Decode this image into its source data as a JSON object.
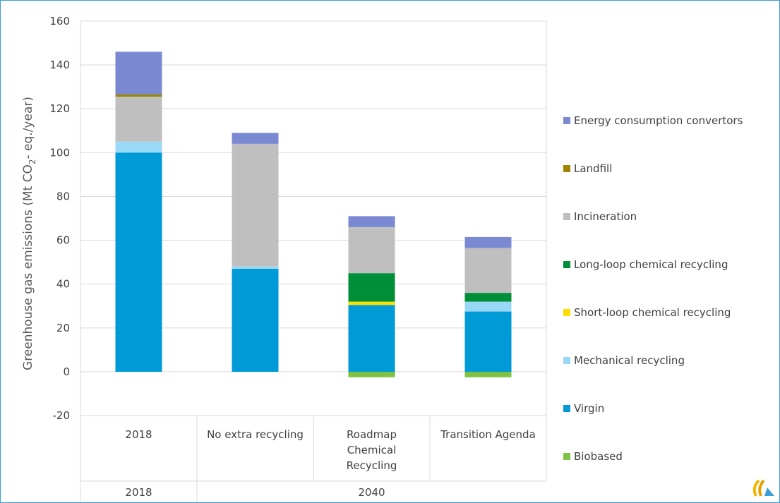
{
  "chart_data": {
    "type": "bar",
    "stacked": true,
    "ylabel": {
      "pre": "Greenhouse gas emissions (Mt CO",
      "sub": "2",
      "post": "- eq./year)"
    },
    "ylim": [
      -20,
      160
    ],
    "yticks": [
      -20,
      0,
      20,
      40,
      60,
      80,
      100,
      120,
      140,
      160
    ],
    "grid": true,
    "legend_position": "right",
    "categories": [
      {
        "label": [
          "2018"
        ],
        "group": "2018"
      },
      {
        "label": [
          "No extra recycling"
        ],
        "group": "2040"
      },
      {
        "label": [
          "Roadmap",
          "Chemical",
          "Recycling"
        ],
        "group": "2040"
      },
      {
        "label": [
          "Transition Agenda"
        ],
        "group": "2040"
      }
    ],
    "groups": [
      "2018",
      "2040"
    ],
    "series": [
      {
        "name": "Biobased",
        "color": "#7dc242",
        "values": [
          0,
          0,
          -2.5,
          -2.5
        ]
      },
      {
        "name": "Virgin",
        "color": "#009ad6",
        "values": [
          100,
          47,
          30.5,
          27.5
        ]
      },
      {
        "name": "Mechanical recycling",
        "color": "#99d9f7",
        "values": [
          5,
          1,
          0,
          4.5
        ]
      },
      {
        "name": "Short-loop chemical recycling",
        "color": "#ffdf00",
        "values": [
          0,
          0,
          1.5,
          0
        ]
      },
      {
        "name": "Long-loop chemical recycling",
        "color": "#008f39",
        "values": [
          0,
          0,
          13,
          4
        ]
      },
      {
        "name": "Incineration",
        "color": "#bfbfbf",
        "values": [
          20.5,
          56,
          21,
          20.5
        ]
      },
      {
        "name": "Landfill",
        "color": "#a08600",
        "values": [
          1,
          0,
          0,
          0
        ]
      },
      {
        "name": "Energy consumption convertors",
        "color": "#7b89d2",
        "values": [
          19.5,
          5,
          5,
          5
        ]
      }
    ]
  },
  "logo": {
    "name": "logo"
  }
}
